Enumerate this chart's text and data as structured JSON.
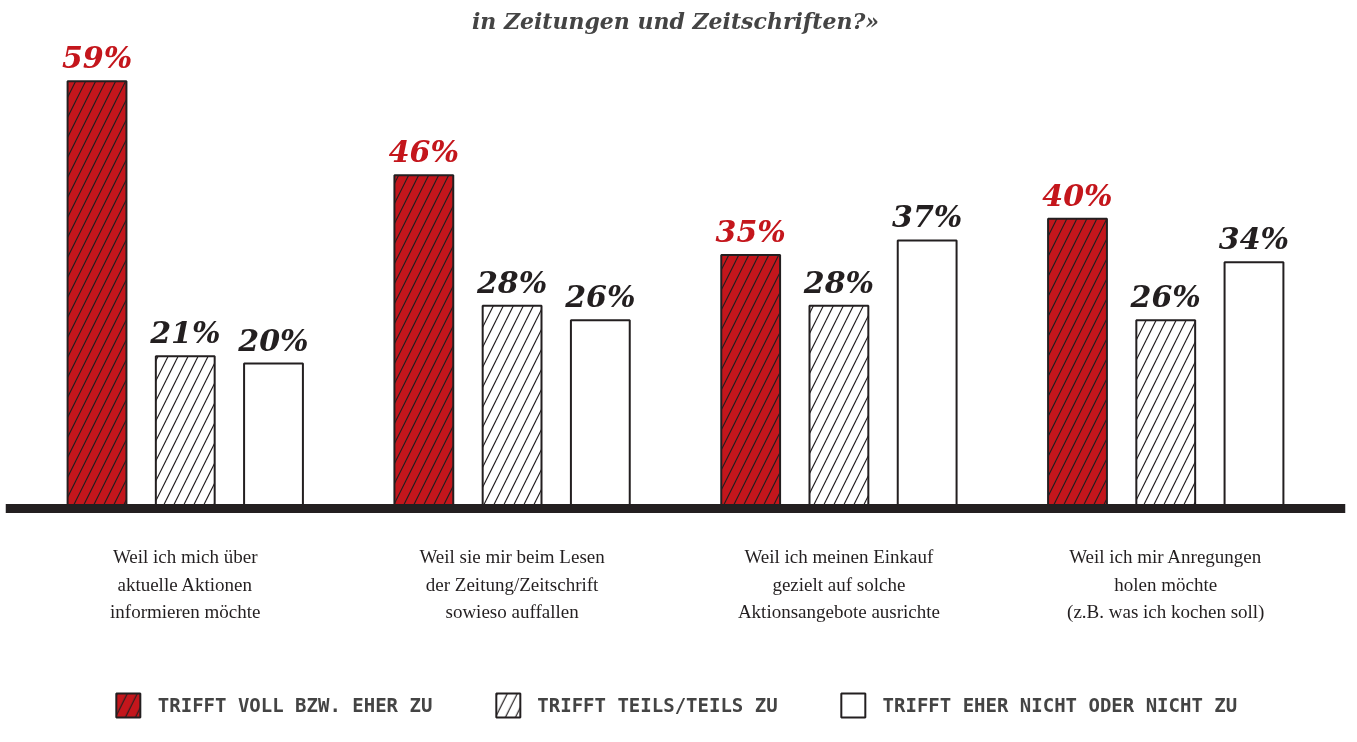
{
  "chart_data": {
    "type": "bar",
    "title": "in Zeitungen und Zeitschriften?»",
    "categories": [
      "Weil ich mich über\naktuelle Aktionen\ninformieren möchte",
      "Weil sie mir beim Lesen\nder Zeitung/Zeitschrift\nsowieso auffallen",
      "Weil ich meinen Einkauf\ngezielt auf solche\nAktionsangebote ausrichte",
      "Weil ich mir Anregungen\nholen möchte\n(z.B. was ich kochen soll)"
    ],
    "series": [
      {
        "name": "TRIFFT VOLL BZW. EHER ZU",
        "color": "#c4161c",
        "values": [
          59,
          46,
          35,
          40
        ],
        "value_labels": [
          "59%",
          "46%",
          "35%",
          "40%"
        ]
      },
      {
        "name": "TRIFFT TEILS/TEILS ZU",
        "color": "#ffffff",
        "values": [
          21,
          28,
          28,
          26
        ],
        "value_labels": [
          "21%",
          "28%",
          "28%",
          "26%"
        ]
      },
      {
        "name": "TRIFFT EHER NICHT ODER NICHT ZU",
        "color": "#ffffff",
        "values": [
          20,
          26,
          37,
          34
        ],
        "value_labels": [
          "20%",
          "26%",
          "37%",
          "34%"
        ]
      }
    ],
    "legend": "bottom",
    "grid": false
  }
}
